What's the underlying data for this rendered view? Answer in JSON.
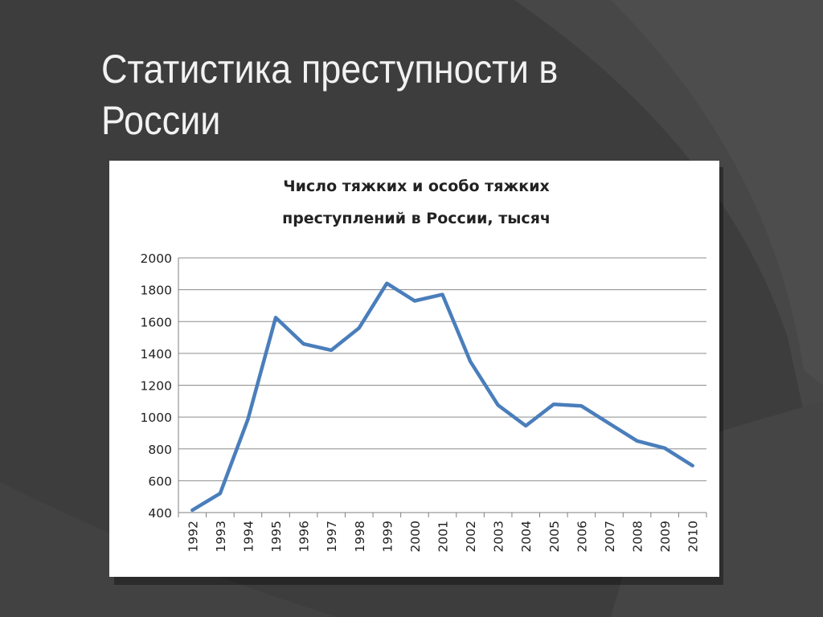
{
  "slide": {
    "title_line1": "Статистика преступности в",
    "title_line2": "России",
    "background_color": "#3d3d3d",
    "title_color": "#f2f2f2"
  },
  "chart_data": {
    "type": "line",
    "title_line1": "Число тяжких и особо тяжких",
    "title_line2": "преступлений в России, тысяч",
    "xlabel": "",
    "ylabel": "",
    "categories": [
      "1992",
      "1993",
      "1994",
      "1995",
      "1996",
      "1997",
      "1998",
      "1999",
      "2000",
      "2001",
      "2002",
      "2003",
      "2004",
      "2005",
      "2006",
      "2007",
      "2008",
      "2009",
      "2010"
    ],
    "series": [
      {
        "values": [
          415,
          520,
          985,
          1625,
          1460,
          1420,
          1560,
          1840,
          1730,
          1770,
          1350,
          1075,
          945,
          1080,
          1070,
          960,
          850,
          805,
          695
        ],
        "color": "#4a7ebb"
      }
    ],
    "ylim": [
      400,
      2000
    ],
    "yticks": [
      "2000",
      "1800",
      "1600",
      "1400",
      "1200",
      "1000",
      "800",
      "600",
      "400"
    ],
    "grid": true,
    "legend": "none"
  }
}
